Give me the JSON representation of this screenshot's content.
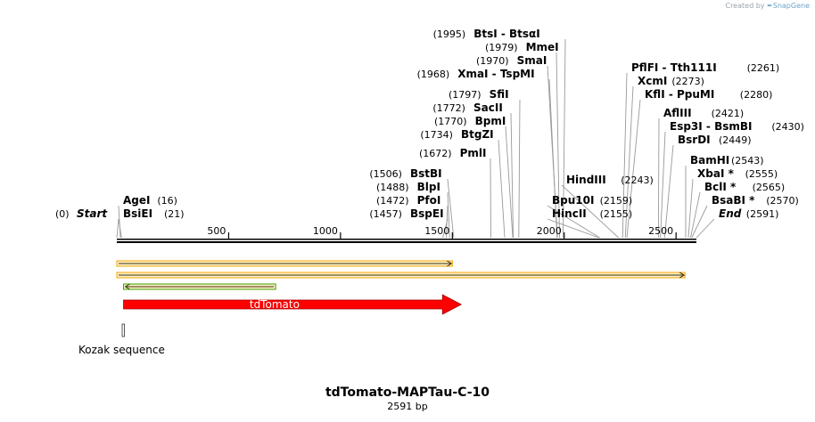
{
  "credit": {
    "prefix": "Created by",
    "brand": "SnapGene"
  },
  "map": {
    "title": "tdTomato-MAPTau-C-10",
    "length_label": "2591 bp",
    "length": 2591,
    "ticks": [
      500,
      1000,
      1500,
      2000,
      2500
    ],
    "sites": [
      {
        "pos": 0,
        "name": "Start",
        "italic": true
      },
      {
        "pos": 16,
        "name": "AgeI"
      },
      {
        "pos": 21,
        "name": "BsiEI"
      },
      {
        "pos": 1457,
        "name": "BspEI"
      },
      {
        "pos": 1472,
        "name": "PfoI"
      },
      {
        "pos": 1488,
        "name": "BlpI"
      },
      {
        "pos": 1506,
        "name": "BstBI"
      },
      {
        "pos": 1672,
        "name": "PmlI"
      },
      {
        "pos": 1734,
        "name": "BtgZI"
      },
      {
        "pos": 1770,
        "name": "BpmI"
      },
      {
        "pos": 1772,
        "name": "SacII"
      },
      {
        "pos": 1797,
        "name": "SfiI"
      },
      {
        "pos": 1968,
        "name": "XmaI  - TspMI"
      },
      {
        "pos": 1970,
        "name": "SmaI"
      },
      {
        "pos": 1979,
        "name": "MmeI"
      },
      {
        "pos": 1995,
        "name": "BtsI  - BtsαI"
      },
      {
        "pos": 2155,
        "name": "HincII"
      },
      {
        "pos": 2159,
        "name": "Bpu10I"
      },
      {
        "pos": 2243,
        "name": "HindIII"
      },
      {
        "pos": 2261,
        "name": "PflFI  - Tth111I"
      },
      {
        "pos": 2273,
        "name": "XcmI"
      },
      {
        "pos": 2280,
        "name": "KflI  - PpuMI"
      },
      {
        "pos": 2421,
        "name": "AflIII"
      },
      {
        "pos": 2430,
        "name": "Esp3I  - BsmBI"
      },
      {
        "pos": 2449,
        "name": "BsrDI"
      },
      {
        "pos": 2543,
        "name": "BamHI"
      },
      {
        "pos": 2555,
        "name": "XbaI *"
      },
      {
        "pos": 2565,
        "name": "BclI *"
      },
      {
        "pos": 2570,
        "name": "BsaBI *"
      },
      {
        "pos": 2591,
        "name": "End",
        "italic": true
      }
    ],
    "features": [
      {
        "name": "tdTomato",
        "type": "gene-arrow",
        "start": 30,
        "end": 1460,
        "color": "#ff0000"
      },
      {
        "name": "Kozak sequence",
        "type": "small-marker",
        "start": 24,
        "end": 34
      }
    ],
    "orfs": [
      {
        "start": 0,
        "end": 1500,
        "direction": "forward",
        "color": "#f4a300"
      },
      {
        "start": 0,
        "end": 2540,
        "direction": "forward",
        "color": "#f4a300"
      },
      {
        "start": 30,
        "end": 710,
        "direction": "reverse",
        "color": "#3aa000"
      }
    ],
    "colors": {
      "backbone": "#000000",
      "label_line": "#999999"
    }
  }
}
